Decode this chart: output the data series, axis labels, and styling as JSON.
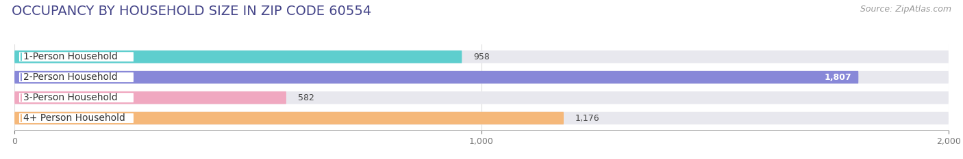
{
  "title": "OCCUPANCY BY HOUSEHOLD SIZE IN ZIP CODE 60554",
  "source": "Source: ZipAtlas.com",
  "categories": [
    "1-Person Household",
    "2-Person Household",
    "3-Person Household",
    "4+ Person Household"
  ],
  "values": [
    958,
    1807,
    582,
    1176
  ],
  "bar_colors": [
    "#5ecece",
    "#8888d8",
    "#f0a8c0",
    "#f5b87a"
  ],
  "bar_bg_color": "#e8e8ee",
  "xlim": [
    0,
    2000
  ],
  "xticks": [
    0,
    1000,
    2000
  ],
  "title_fontsize": 14,
  "source_fontsize": 9,
  "label_fontsize": 10,
  "value_fontsize": 9,
  "bar_height": 0.62,
  "background_color": "#ffffff",
  "tick_color": "#aaaaaa",
  "grid_color": "#dddddd"
}
